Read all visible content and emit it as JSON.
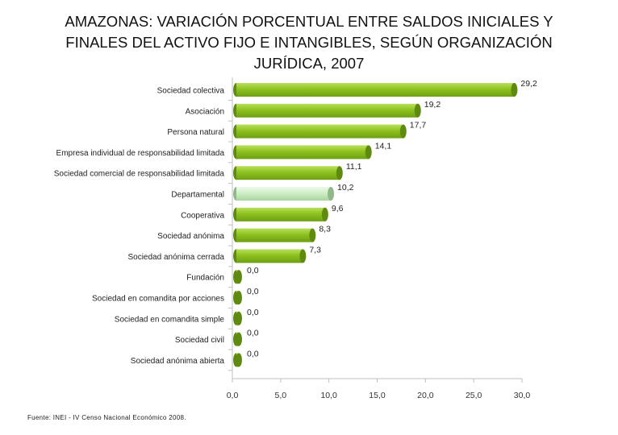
{
  "title_lines": [
    "AMAZONAS: VARIACIÓN PORCENTUAL ENTRE SALDOS INICIALES Y",
    "FINALES DEL ACTIVO FIJO E INTANGIBLES, SEGÚN ORGANIZACIÓN",
    "JURÍDICA, 2007"
  ],
  "source": "Fuente: INEI - IV Censo Nacional Económico 2008.",
  "colors": {
    "bar": "#8dc21f",
    "bar_dark": "#5e8a10",
    "bar_highlight": "#cfeec6",
    "bar_highlight_dark": "#8fb98a"
  },
  "chart_data": {
    "type": "bar",
    "orientation": "horizontal",
    "categories": [
      "Sociedad colectiva",
      "Asociación",
      "Persona natural",
      "Empresa individual de responsabilidad limitada",
      "Sociedad comercial de responsabilidad limitada",
      "Departamental",
      "Cooperativa",
      "Sociedad anónima",
      "Sociedad anónima cerrada",
      "Fundación",
      "Sociedad en comandita por acciones",
      "Sociedad en comandita simple",
      "Sociedad civil",
      "Sociedad anónima abierta"
    ],
    "values": [
      29.2,
      19.2,
      17.7,
      14.1,
      11.1,
      10.2,
      9.6,
      8.3,
      7.3,
      0.0,
      0.0,
      0.0,
      0.0,
      0.0
    ],
    "value_labels": [
      "29,2",
      "19,2",
      "17,7",
      "14,1",
      "11,1",
      "10,2",
      "9,6",
      "8,3",
      "7,3",
      "0,0",
      "0,0",
      "0,0",
      "0,0",
      "0,0"
    ],
    "highlight_category": "Departamental",
    "xlim": [
      0,
      30
    ],
    "xticks": [
      "0,0",
      "5,0",
      "10,0",
      "15,0",
      "20,0",
      "25,0",
      "30,0"
    ],
    "grid": false,
    "legend": "none"
  }
}
